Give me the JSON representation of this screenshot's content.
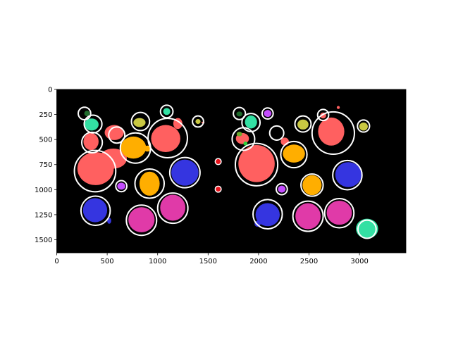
{
  "chart_data": {
    "type": "scatter",
    "title": "",
    "xlabel": "",
    "ylabel": "",
    "xlim": [
      0,
      3460
    ],
    "ylim": [
      1630,
      0
    ],
    "y_inverted": true,
    "background_color": "#000000",
    "grid": false,
    "xticks": [
      0,
      500,
      1000,
      1500,
      2000,
      2500,
      3000
    ],
    "yticks": [
      0,
      250,
      500,
      750,
      1000,
      1250,
      1500
    ],
    "circles": [
      {
        "x": 275,
        "y": 240,
        "r": 62
      },
      {
        "x": 360,
        "y": 345,
        "r": 88
      },
      {
        "x": 350,
        "y": 530,
        "r": 102
      },
      {
        "x": 380,
        "y": 815,
        "r": 205
      },
      {
        "x": 385,
        "y": 1210,
        "r": 145
      },
      {
        "x": 595,
        "y": 455,
        "r": 80
      },
      {
        "x": 640,
        "y": 965,
        "r": 55
      },
      {
        "x": 780,
        "y": 585,
        "r": 150
      },
      {
        "x": 830,
        "y": 320,
        "r": 90
      },
      {
        "x": 920,
        "y": 940,
        "r": 145
      },
      {
        "x": 840,
        "y": 1305,
        "r": 150
      },
      {
        "x": 1090,
        "y": 220,
        "r": 62
      },
      {
        "x": 1100,
        "y": 485,
        "r": 195
      },
      {
        "x": 1150,
        "y": 1185,
        "r": 150
      },
      {
        "x": 1270,
        "y": 830,
        "r": 150
      },
      {
        "x": 1400,
        "y": 320,
        "r": 55
      },
      {
        "x": 1600,
        "y": 720,
        "r": 30
      },
      {
        "x": 1600,
        "y": 995,
        "r": 30
      },
      {
        "x": 1810,
        "y": 240,
        "r": 60
      },
      {
        "x": 1850,
        "y": 495,
        "r": 112
      },
      {
        "x": 1925,
        "y": 330,
        "r": 90
      },
      {
        "x": 1980,
        "y": 750,
        "r": 210
      },
      {
        "x": 2090,
        "y": 240,
        "r": 55
      },
      {
        "x": 2180,
        "y": 435,
        "r": 70
      },
      {
        "x": 2090,
        "y": 1245,
        "r": 145
      },
      {
        "x": 2230,
        "y": 995,
        "r": 55
      },
      {
        "x": 2350,
        "y": 650,
        "r": 130
      },
      {
        "x": 2440,
        "y": 345,
        "r": 80
      },
      {
        "x": 2490,
        "y": 1265,
        "r": 150
      },
      {
        "x": 2530,
        "y": 955,
        "r": 110
      },
      {
        "x": 2640,
        "y": 255,
        "r": 55
      },
      {
        "x": 2740,
        "y": 435,
        "r": 210
      },
      {
        "x": 2800,
        "y": 1235,
        "r": 145
      },
      {
        "x": 2880,
        "y": 855,
        "r": 145
      },
      {
        "x": 3040,
        "y": 365,
        "r": 60
      },
      {
        "x": 3075,
        "y": 1395,
        "r": 90
      }
    ],
    "blobs": [
      {
        "x": 300,
        "y": 240,
        "w": 55,
        "h": 55,
        "color": "#1f6b2c"
      },
      {
        "x": 345,
        "y": 350,
        "w": 140,
        "h": 120,
        "color": "#33e0a3"
      },
      {
        "x": 340,
        "y": 520,
        "w": 150,
        "h": 170,
        "color": "#ff6060"
      },
      {
        "x": 385,
        "y": 790,
        "w": 360,
        "h": 330,
        "color": "#ff6060"
      },
      {
        "x": 560,
        "y": 690,
        "w": 270,
        "h": 200,
        "color": "#ff6060"
      },
      {
        "x": 570,
        "y": 430,
        "w": 190,
        "h": 150,
        "color": "#ff6060"
      },
      {
        "x": 380,
        "y": 1205,
        "w": 240,
        "h": 240,
        "color": "#3535e0"
      },
      {
        "x": 520,
        "y": 1310,
        "w": 40,
        "h": 60,
        "color": "#3535e0"
      },
      {
        "x": 640,
        "y": 965,
        "w": 80,
        "h": 70,
        "color": "#c44dff"
      },
      {
        "x": 760,
        "y": 580,
        "w": 250,
        "h": 220,
        "color": "#ffae00"
      },
      {
        "x": 900,
        "y": 590,
        "w": 80,
        "h": 60,
        "color": "#ffae00"
      },
      {
        "x": 820,
        "y": 330,
        "w": 120,
        "h": 90,
        "color": "#c9c842"
      },
      {
        "x": 920,
        "y": 940,
        "w": 200,
        "h": 240,
        "color": "#ffae00"
      },
      {
        "x": 840,
        "y": 1300,
        "w": 260,
        "h": 250,
        "color": "#e03aa8"
      },
      {
        "x": 1090,
        "y": 220,
        "w": 70,
        "h": 70,
        "color": "#33e0a3"
      },
      {
        "x": 1080,
        "y": 490,
        "w": 290,
        "h": 270,
        "color": "#ff6060"
      },
      {
        "x": 1200,
        "y": 340,
        "w": 90,
        "h": 110,
        "color": "#ff6060"
      },
      {
        "x": 1150,
        "y": 1180,
        "w": 250,
        "h": 260,
        "color": "#e03aa8"
      },
      {
        "x": 1270,
        "y": 830,
        "w": 270,
        "h": 260,
        "color": "#3535e0"
      },
      {
        "x": 1400,
        "y": 320,
        "w": 50,
        "h": 50,
        "color": "#c9c842"
      },
      {
        "x": 1450,
        "y": 330,
        "w": 30,
        "h": 18,
        "color": "#ff6060"
      },
      {
        "x": 1810,
        "y": 245,
        "w": 60,
        "h": 50,
        "color": "#1f6b2c"
      },
      {
        "x": 1840,
        "y": 490,
        "w": 130,
        "h": 110,
        "color": "#ff6060"
      },
      {
        "x": 1810,
        "y": 445,
        "w": 55,
        "h": 45,
        "color": "#6aa92c"
      },
      {
        "x": 1870,
        "y": 540,
        "w": 40,
        "h": 40,
        "color": "#2ccf3a"
      },
      {
        "x": 1925,
        "y": 325,
        "w": 120,
        "h": 130,
        "color": "#33e0a3"
      },
      {
        "x": 1980,
        "y": 740,
        "w": 360,
        "h": 370,
        "color": "#ff6060"
      },
      {
        "x": 2090,
        "y": 240,
        "w": 75,
        "h": 70,
        "color": "#c44dff"
      },
      {
        "x": 2090,
        "y": 1250,
        "w": 240,
        "h": 230,
        "color": "#3535e0"
      },
      {
        "x": 1990,
        "y": 1340,
        "w": 60,
        "h": 60,
        "color": "#3535e0"
      },
      {
        "x": 2230,
        "y": 995,
        "w": 75,
        "h": 70,
        "color": "#c44dff"
      },
      {
        "x": 2260,
        "y": 520,
        "w": 80,
        "h": 80,
        "color": "#ff6060"
      },
      {
        "x": 2350,
        "y": 640,
        "w": 220,
        "h": 180,
        "color": "#ffae00"
      },
      {
        "x": 2440,
        "y": 350,
        "w": 110,
        "h": 100,
        "color": "#c9c842"
      },
      {
        "x": 2490,
        "y": 1265,
        "w": 250,
        "h": 260,
        "color": "#e03aa8"
      },
      {
        "x": 2530,
        "y": 955,
        "w": 190,
        "h": 200,
        "color": "#ffae00"
      },
      {
        "x": 2640,
        "y": 260,
        "w": 60,
        "h": 60,
        "color": "#ff6060"
      },
      {
        "x": 2720,
        "y": 420,
        "w": 260,
        "h": 280,
        "color": "#ff6060"
      },
      {
        "x": 2790,
        "y": 180,
        "w": 30,
        "h": 30,
        "color": "#ff6060"
      },
      {
        "x": 2800,
        "y": 1230,
        "w": 250,
        "h": 240,
        "color": "#e03aa8"
      },
      {
        "x": 2890,
        "y": 850,
        "w": 260,
        "h": 250,
        "color": "#3535e0"
      },
      {
        "x": 3040,
        "y": 370,
        "w": 85,
        "h": 80,
        "color": "#c9c842"
      },
      {
        "x": 3075,
        "y": 1390,
        "w": 220,
        "h": 200,
        "color": "#33e0a3"
      }
    ]
  }
}
